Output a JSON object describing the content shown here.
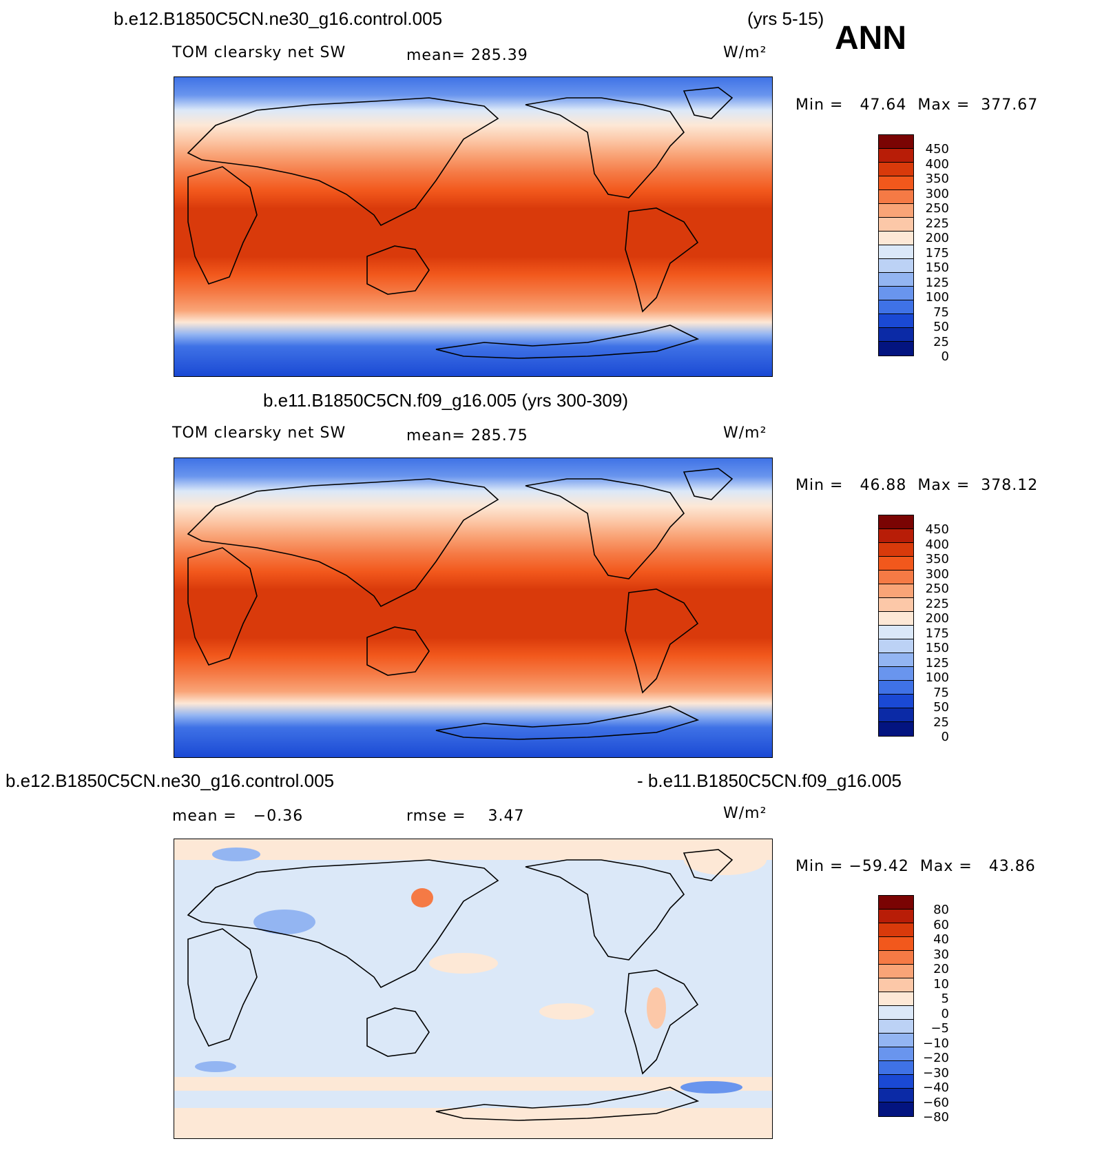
{
  "season": "ANN",
  "panels": [
    {
      "case": "b.e12.B1850C5CN.ne30_g16.control.005",
      "years": "(yrs 5-15)",
      "variable": "TOM clearsky net SW",
      "mean_text": "mean= 285.39",
      "units": "W/m²",
      "minmax": "Min =   47.64  Max =  377.67"
    },
    {
      "title": "b.e11.B1850C5CN.f09_g16.005 (yrs 300-309)",
      "variable": "TOM clearsky net SW",
      "mean_text": "mean= 285.75",
      "units": "W/m²",
      "minmax": "Min =   46.88  Max =  378.12"
    },
    {
      "case_left": "b.e12.B1850C5CN.ne30_g16.control.005",
      "case_right": "- b.e11.B1850C5CN.f09_g16.005",
      "mean_text": "mean =   −0.36",
      "rmse_text": "rmse =    3.47",
      "units": "W/m²",
      "minmax": "Min = −59.42  Max =   43.86"
    }
  ],
  "colorbar_abs": {
    "labels": [
      "450",
      "400",
      "350",
      "300",
      "250",
      "225",
      "200",
      "175",
      "150",
      "125",
      "100",
      "75",
      "50",
      "25",
      "0"
    ],
    "colors": [
      "#7a0403",
      "#b81d07",
      "#d93a0b",
      "#f2581c",
      "#f57a45",
      "#f9a477",
      "#fcc8a8",
      "#fde8d6",
      "#dbe8f8",
      "#bcd2f5",
      "#93b5f2",
      "#6995ee",
      "#3f72e6",
      "#1a49d4",
      "#0b2aa6",
      "#031480"
    ]
  },
  "colorbar_diff": {
    "labels": [
      "80",
      "60",
      "40",
      "30",
      "20",
      "10",
      "5",
      "0",
      "−5",
      "−10",
      "−20",
      "−30",
      "−40",
      "−60",
      "−80"
    ],
    "colors": [
      "#7a0403",
      "#b81d07",
      "#d93a0b",
      "#f2581c",
      "#f57a45",
      "#f9a477",
      "#fcc8a8",
      "#fde8d6",
      "#dbe8f8",
      "#bcd2f5",
      "#93b5f2",
      "#6995ee",
      "#3f72e6",
      "#1a49d4",
      "#0b2aa6",
      "#031480"
    ]
  }
}
